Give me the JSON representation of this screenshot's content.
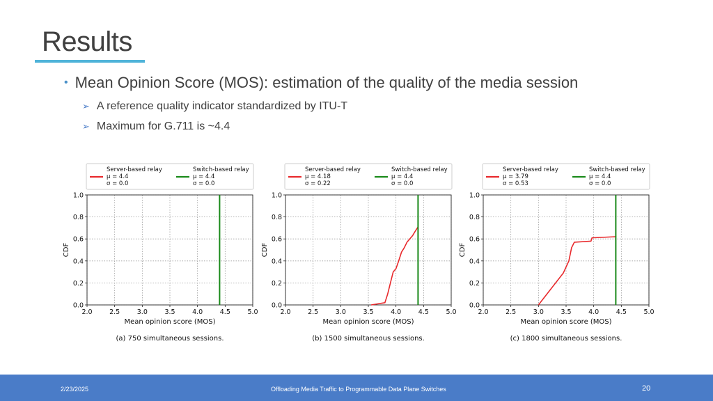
{
  "slide": {
    "title": "Results",
    "bullet": "Mean Opinion Score (MOS): estimation of the quality of the media session",
    "sub_bullets": [
      "A reference quality indicator standardized by ITU-T",
      "Maximum for G.711 is ~4.4"
    ]
  },
  "footer": {
    "date": "2/23/2025",
    "center": "Offloading Media Traffic to Programmable Data Plane Switches",
    "page": "20"
  },
  "colors": {
    "server": "#e8292c",
    "switch": "#1a8a1a",
    "accent": "#4fb3d9",
    "footer_bg": "#4a7cc8"
  },
  "chart_data": [
    {
      "type": "line",
      "caption": "(a) 750 simultaneous sessions.",
      "xlabel": "Mean opinion score (MOS)",
      "ylabel": "CDF",
      "xlim": [
        2.0,
        5.0
      ],
      "ylim": [
        0.0,
        1.0
      ],
      "xticks": [
        "2.0",
        "2.5",
        "3.0",
        "3.5",
        "4.0",
        "4.5",
        "5.0"
      ],
      "yticks": [
        "0.0",
        "0.2",
        "0.4",
        "0.6",
        "0.8",
        "1.0"
      ],
      "grid": true,
      "legend_position": "top",
      "legend": [
        {
          "name": "Server-based relay",
          "mu": "μ = 4.4",
          "sigma": "σ = 0.0"
        },
        {
          "name": "Switch-based relay",
          "mu": "μ = 4.4",
          "sigma": "σ = 0.0"
        }
      ],
      "series": [
        {
          "name": "Server-based relay",
          "x": [],
          "y": []
        },
        {
          "name": "Switch-based relay",
          "x": [
            4.4,
            4.4
          ],
          "y": [
            0.0,
            1.0
          ]
        }
      ]
    },
    {
      "type": "line",
      "caption": "(b) 1500 simultaneous sessions.",
      "xlabel": "Mean opinion score (MOS)",
      "ylabel": "CDF",
      "xlim": [
        2.0,
        5.0
      ],
      "ylim": [
        0.0,
        1.0
      ],
      "xticks": [
        "2.0",
        "2.5",
        "3.0",
        "3.5",
        "4.0",
        "4.5",
        "5.0"
      ],
      "yticks": [
        "0.0",
        "0.2",
        "0.4",
        "0.6",
        "0.8",
        "1.0"
      ],
      "grid": true,
      "legend_position": "top",
      "legend": [
        {
          "name": "Server-based relay",
          "mu": "μ = 4.18",
          "sigma": "σ = 0.22"
        },
        {
          "name": "Switch-based relay",
          "mu": "μ = 4.4",
          "sigma": "σ = 0.0"
        }
      ],
      "series": [
        {
          "name": "Server-based relay",
          "x": [
            3.55,
            3.8,
            3.85,
            3.9,
            3.95,
            4.0,
            4.05,
            4.1,
            4.15,
            4.2,
            4.25,
            4.3,
            4.35,
            4.4
          ],
          "y": [
            0.0,
            0.02,
            0.1,
            0.2,
            0.3,
            0.33,
            0.4,
            0.48,
            0.52,
            0.57,
            0.6,
            0.63,
            0.67,
            0.71
          ]
        },
        {
          "name": "Switch-based relay",
          "x": [
            4.4,
            4.4
          ],
          "y": [
            0.0,
            1.0
          ]
        }
      ]
    },
    {
      "type": "line",
      "caption": "(c) 1800 simultaneous sessions.",
      "xlabel": "Mean opinion score (MOS)",
      "ylabel": "CDF",
      "xlim": [
        2.0,
        5.0
      ],
      "ylim": [
        0.0,
        1.0
      ],
      "xticks": [
        "2.0",
        "2.5",
        "3.0",
        "3.5",
        "4.0",
        "4.5",
        "5.0"
      ],
      "yticks": [
        "0.0",
        "0.2",
        "0.4",
        "0.6",
        "0.8",
        "1.0"
      ],
      "grid": true,
      "legend_position": "top",
      "legend": [
        {
          "name": "Server-based relay",
          "mu": "μ = 3.79",
          "sigma": "σ = 0.53"
        },
        {
          "name": "Switch-based relay",
          "mu": "μ = 4.4",
          "sigma": "σ = 0.0"
        }
      ],
      "series": [
        {
          "name": "Server-based relay",
          "x": [
            3.0,
            3.45,
            3.55,
            3.6,
            3.65,
            3.95,
            3.97,
            4.4
          ],
          "y": [
            0.0,
            0.29,
            0.4,
            0.52,
            0.57,
            0.58,
            0.61,
            0.62
          ]
        },
        {
          "name": "Switch-based relay",
          "x": [
            4.4,
            4.4
          ],
          "y": [
            0.0,
            1.0
          ]
        }
      ]
    }
  ]
}
